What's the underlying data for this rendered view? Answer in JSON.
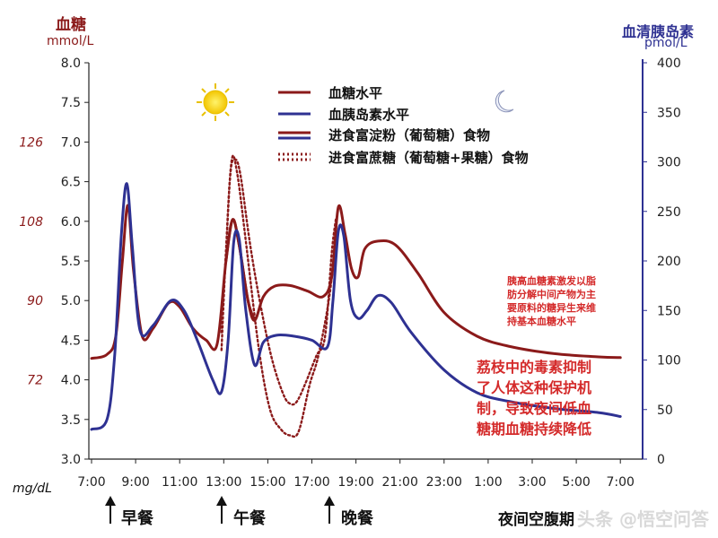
{
  "chart_data": {
    "type": "line",
    "left_axis": {
      "title": "血糖",
      "unit": "mmol/L",
      "range": [
        3.0,
        8.0
      ],
      "ticks": [
        "3.0",
        "3.5",
        "4.0",
        "4.5",
        "5.0",
        "5.5",
        "6.0",
        "6.5",
        "7.0",
        "7.5",
        "8.0"
      ],
      "secondary_unit": "mg/dL",
      "secondary_ticks": [
        {
          "label": "72",
          "at": 4.0
        },
        {
          "label": "90",
          "at": 5.0
        },
        {
          "label": "108",
          "at": 6.0
        },
        {
          "label": "126",
          "at": 7.0
        }
      ]
    },
    "right_axis": {
      "title": "血清胰岛素",
      "unit": "pmol/L",
      "range": [
        0,
        400
      ],
      "ticks": [
        "0",
        "50",
        "100",
        "150",
        "200",
        "250",
        "300",
        "350",
        "400"
      ]
    },
    "x_ticks": [
      "7:00",
      "9:00",
      "11:00",
      "13:00",
      "15:00",
      "17:00",
      "19:00",
      "21:00",
      "23:00",
      "1:00",
      "3:00",
      "5:00",
      "7:00"
    ],
    "legend": [
      {
        "label": "血糖水平",
        "color": "#8b1a1a",
        "style": "solid"
      },
      {
        "label": "血胰岛素水平",
        "color": "#2e3192",
        "style": "solid"
      },
      {
        "label": "进食富淀粉（葡萄糖）食物",
        "color": "#8b1a1a",
        "style": "solid"
      },
      {
        "label": "进食富蔗糖（葡萄糖+果糖）食物",
        "color": "#8b1a1a",
        "style": "dotted"
      }
    ],
    "series": [
      {
        "name": "血糖水平",
        "axis": "left",
        "color": "#8b1a1a",
        "style": "solid",
        "points": [
          [
            7,
            4.27
          ],
          [
            7.7,
            4.32
          ],
          [
            8.1,
            4.55
          ],
          [
            8.4,
            5.5
          ],
          [
            8.65,
            6.2
          ],
          [
            8.9,
            5.4
          ],
          [
            9.3,
            4.55
          ],
          [
            9.8,
            4.65
          ],
          [
            10.5,
            4.97
          ],
          [
            11,
            4.92
          ],
          [
            11.6,
            4.65
          ],
          [
            12.2,
            4.5
          ],
          [
            12.7,
            4.45
          ],
          [
            13.1,
            5.5
          ],
          [
            13.4,
            6.02
          ],
          [
            13.7,
            5.7
          ],
          [
            14.1,
            5.0
          ],
          [
            14.4,
            4.75
          ],
          [
            14.8,
            5.05
          ],
          [
            15.3,
            5.18
          ],
          [
            16,
            5.19
          ],
          [
            16.8,
            5.12
          ],
          [
            17.5,
            5.05
          ],
          [
            17.9,
            5.3
          ],
          [
            18.2,
            6.18
          ],
          [
            18.5,
            5.85
          ],
          [
            18.8,
            5.4
          ],
          [
            19.1,
            5.3
          ],
          [
            19.4,
            5.65
          ],
          [
            20,
            5.75
          ],
          [
            20.8,
            5.7
          ],
          [
            21.8,
            5.35
          ],
          [
            23,
            4.85
          ],
          [
            24.5,
            4.55
          ],
          [
            26,
            4.42
          ],
          [
            28,
            4.33
          ],
          [
            30,
            4.29
          ],
          [
            31,
            4.28
          ]
        ]
      },
      {
        "name": "血胰岛素水平",
        "axis": "right",
        "color": "#2e3192",
        "style": "solid",
        "points": [
          [
            7,
            30
          ],
          [
            7.7,
            40
          ],
          [
            8.05,
            105
          ],
          [
            8.35,
            225
          ],
          [
            8.6,
            278
          ],
          [
            8.85,
            215
          ],
          [
            9.2,
            130
          ],
          [
            9.8,
            135
          ],
          [
            10.6,
            160
          ],
          [
            11.2,
            150
          ],
          [
            11.8,
            120
          ],
          [
            12.5,
            80
          ],
          [
            12.9,
            68
          ],
          [
            13.2,
            120
          ],
          [
            13.45,
            218
          ],
          [
            13.7,
            222
          ],
          [
            14.0,
            150
          ],
          [
            14.4,
            95
          ],
          [
            14.8,
            118
          ],
          [
            15.4,
            125
          ],
          [
            16.2,
            124
          ],
          [
            17,
            120
          ],
          [
            17.7,
            113
          ],
          [
            17.95,
            158
          ],
          [
            18.2,
            230
          ],
          [
            18.45,
            225
          ],
          [
            18.75,
            160
          ],
          [
            19.1,
            142
          ],
          [
            19.5,
            150
          ],
          [
            20,
            165
          ],
          [
            20.6,
            158
          ],
          [
            21.5,
            128
          ],
          [
            23,
            90
          ],
          [
            24.5,
            67
          ],
          [
            26,
            58
          ],
          [
            28,
            51
          ],
          [
            30,
            47
          ],
          [
            31,
            43
          ]
        ]
      },
      {
        "name": "进食富淀粉（葡萄糖）食物",
        "axis": "left",
        "color": "#8b1a1a",
        "style": "solid",
        "points": [
          [
            13.1,
            5.5
          ],
          [
            13.4,
            6.02
          ],
          [
            13.7,
            5.7
          ],
          [
            14.1,
            5.0
          ],
          [
            14.4,
            4.75
          ]
        ]
      },
      {
        "name": "进食富蔗糖（葡萄糖+果糖）食物",
        "axis": "left",
        "color": "#8b1a1a",
        "style": "dotted",
        "points": [
          [
            12.9,
            4.6
          ],
          [
            13.1,
            5.6
          ],
          [
            13.3,
            6.6
          ],
          [
            13.5,
            6.78
          ],
          [
            13.75,
            6.6
          ],
          [
            14.2,
            5.7
          ],
          [
            14.7,
            4.9
          ],
          [
            15.2,
            4.25
          ],
          [
            15.7,
            3.82
          ],
          [
            16.0,
            3.7
          ],
          [
            16.3,
            3.72
          ],
          [
            16.7,
            3.95
          ],
          [
            17.2,
            4.3
          ],
          [
            17.6,
            4.55
          ],
          [
            17.9,
            5.6
          ],
          [
            18.1,
            6.05
          ]
        ]
      },
      {
        "name": "进食富蔗糖（葡萄糖+果糖）食物",
        "axis": "right",
        "color": "#8b1a1a",
        "style": "dotted",
        "points": [
          [
            12.9,
            110
          ],
          [
            13.1,
            210
          ],
          [
            13.35,
            300
          ],
          [
            13.6,
            290
          ],
          [
            14.0,
            220
          ],
          [
            14.6,
            110
          ],
          [
            15.1,
            50
          ],
          [
            15.6,
            30
          ],
          [
            16.0,
            24
          ],
          [
            16.4,
            28
          ],
          [
            16.9,
            75
          ],
          [
            17.3,
            105
          ],
          [
            17.8,
            165
          ],
          [
            18.1,
            228
          ]
        ]
      }
    ]
  },
  "annotations": {
    "gluconeogenesis": [
      "胰高血糖素激发以脂",
      "肪分解中间产物为主",
      "要原料的糖异生来维",
      "持基本血糖水平"
    ],
    "toxin": [
      "荔枝中的毒素抑制",
      "了人体这种保护机",
      "制，导致夜间低血",
      "糖期血糖持续降低"
    ]
  },
  "meals": {
    "breakfast": "早餐",
    "lunch": "午餐",
    "dinner": "晚餐",
    "fasting": "夜间空腹期"
  },
  "watermark": "头条 @悟空问答"
}
